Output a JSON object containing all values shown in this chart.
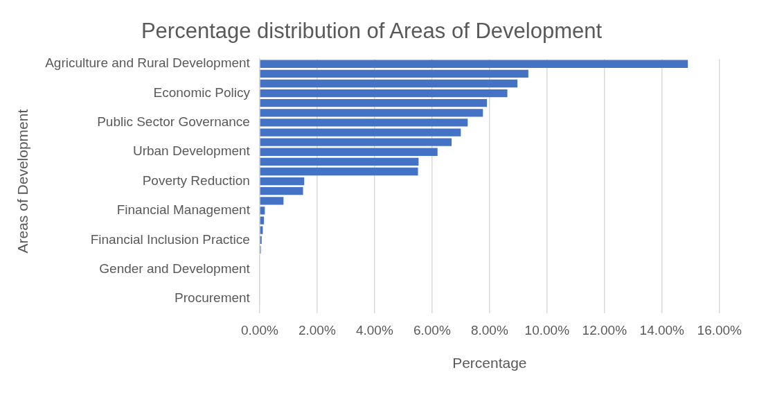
{
  "chart_data": {
    "type": "bar",
    "orientation": "horizontal",
    "title": "Percentage distribution of Areas of Development",
    "xlabel": "Percentage",
    "ylabel": "Areas of Development",
    "categories": [
      "Agriculture and Rural Development",
      null,
      null,
      "Economic Policy",
      null,
      null,
      "Public Sector Governance",
      null,
      null,
      "Urban Development",
      null,
      null,
      "Poverty Reduction",
      null,
      null,
      "Financial Management",
      null,
      null,
      "Financial Inclusion Practice",
      null,
      null,
      "Gender and Development",
      null,
      null,
      "Procurement"
    ],
    "values": [
      14.9,
      9.35,
      8.97,
      8.62,
      7.91,
      7.77,
      7.24,
      7.0,
      6.68,
      6.19,
      5.53,
      5.51,
      1.55,
      1.51,
      0.83,
      0.18,
      0.15,
      0.11,
      0.07,
      0.04,
      null,
      null,
      null,
      0,
      0
    ],
    "color": "#4472c4",
    "xlim": [
      0,
      16
    ],
    "xticks": [
      {
        "value": 0,
        "label": "0.00%"
      },
      {
        "value": 2,
        "label": "2.00%"
      },
      {
        "value": 4,
        "label": "4.00%"
      },
      {
        "value": 6,
        "label": "6.00%"
      },
      {
        "value": 8,
        "label": "8.00%"
      },
      {
        "value": 10,
        "label": "10.00%"
      },
      {
        "value": 12,
        "label": "12.00%"
      },
      {
        "value": 14,
        "label": "14.00%"
      },
      {
        "value": 16,
        "label": "16.00%"
      }
    ],
    "grid": "x",
    "legend": false
  }
}
